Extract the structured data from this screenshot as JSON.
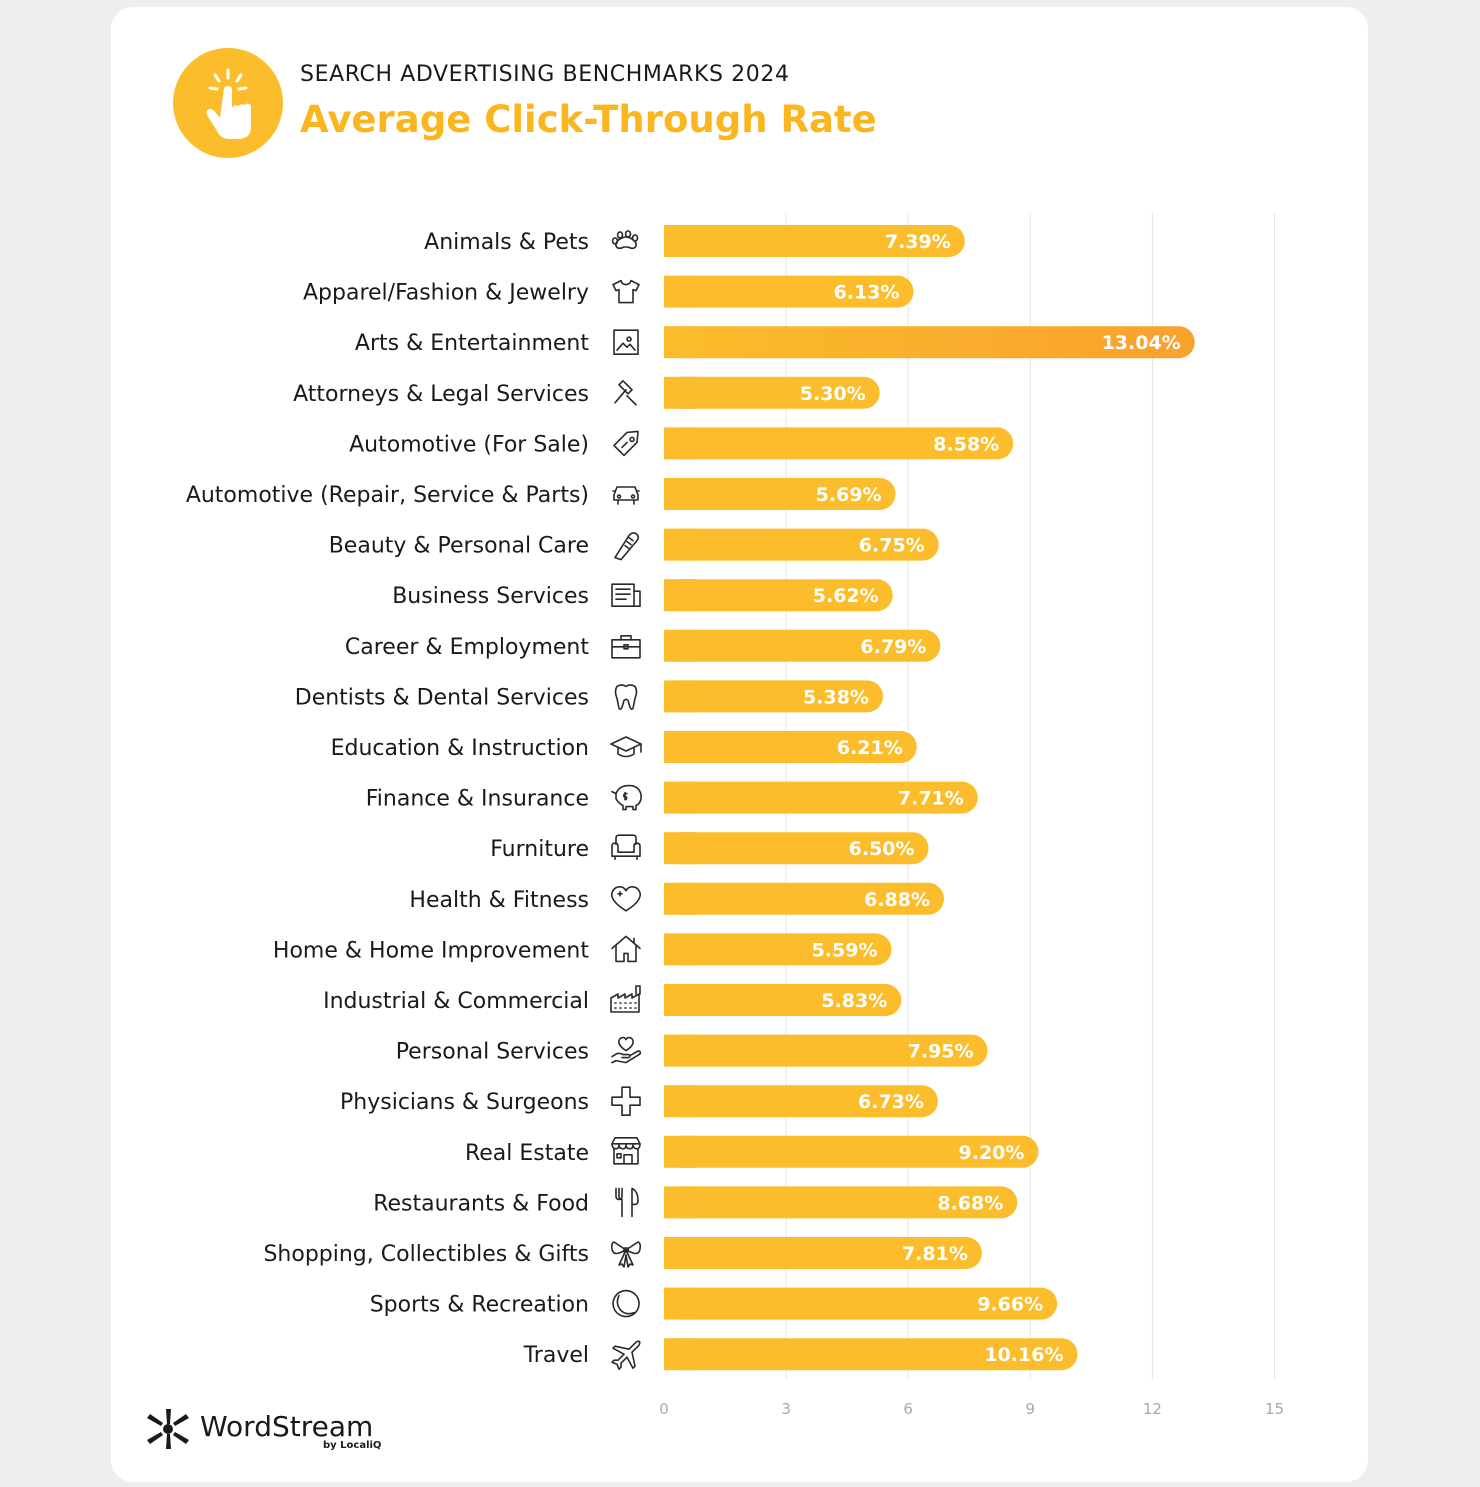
{
  "header": {
    "kicker": "SEARCH ADVERTISING BENCHMARKS 2024",
    "title": "Average Click-Through Rate",
    "icon": "pointer-hand-click-icon"
  },
  "brand": {
    "name": "WordStream",
    "sub": "by LocaliQ",
    "mark": "wordstream-asterisk-logo-icon"
  },
  "colors": {
    "bar": "#fbbd2b",
    "bar_highlight_end": "#f9a12e",
    "title": "#fbb61f",
    "grid": "#e6e6e6"
  },
  "chart_data": {
    "type": "bar",
    "orientation": "horizontal",
    "xlim": [
      0,
      15
    ],
    "ticks": [
      0,
      3,
      6,
      9,
      12,
      15
    ],
    "grid": true,
    "categories": [
      "Animals & Pets",
      "Apparel/Fashion & Jewelry",
      "Arts & Entertainment",
      "Attorneys & Legal Services",
      "Automotive (For Sale)",
      "Automotive (Repair, Service & Parts)",
      "Beauty & Personal Care",
      "Business Services",
      "Career & Employment",
      "Dentists & Dental Services",
      "Education & Instruction",
      "Finance & Insurance",
      "Furniture",
      "Health & Fitness",
      "Home & Home Improvement",
      "Industrial & Commercial",
      "Personal Services",
      "Physicians & Surgeons",
      "Real Estate",
      "Restaurants & Food",
      "Shopping, Collectibles & Gifts",
      "Sports & Recreation",
      "Travel"
    ],
    "values": [
      7.39,
      6.13,
      13.04,
      5.3,
      8.58,
      5.69,
      6.75,
      5.62,
      6.79,
      5.38,
      6.21,
      7.71,
      6.5,
      6.88,
      5.59,
      5.83,
      7.95,
      6.73,
      9.2,
      8.68,
      7.81,
      9.66,
      10.16
    ],
    "value_labels": [
      "7.39%",
      "6.13%",
      "13.04%",
      "5.30%",
      "8.58%",
      "5.69%",
      "6.75%",
      "5.62%",
      "6.79%",
      "5.38%",
      "6.21%",
      "7.71%",
      "6.50%",
      "6.88%",
      "5.59%",
      "5.83%",
      "7.95%",
      "6.73%",
      "9.20%",
      "8.68%",
      "7.81%",
      "9.66%",
      "10.16%"
    ],
    "icons": [
      "paw-icon",
      "tshirt-icon",
      "picture-icon",
      "gavel-icon",
      "price-tag-icon",
      "car-icon",
      "comb-icon",
      "document-icon",
      "briefcase-icon",
      "tooth-icon",
      "graduation-cap-icon",
      "piggy-bank-icon",
      "armchair-icon",
      "heart-icon",
      "house-icon",
      "factory-icon",
      "hand-heart-icon",
      "medical-cross-icon",
      "storefront-icon",
      "fork-knife-icon",
      "gift-bow-icon",
      "ball-icon",
      "airplane-icon"
    ],
    "highlight_index": 2
  }
}
